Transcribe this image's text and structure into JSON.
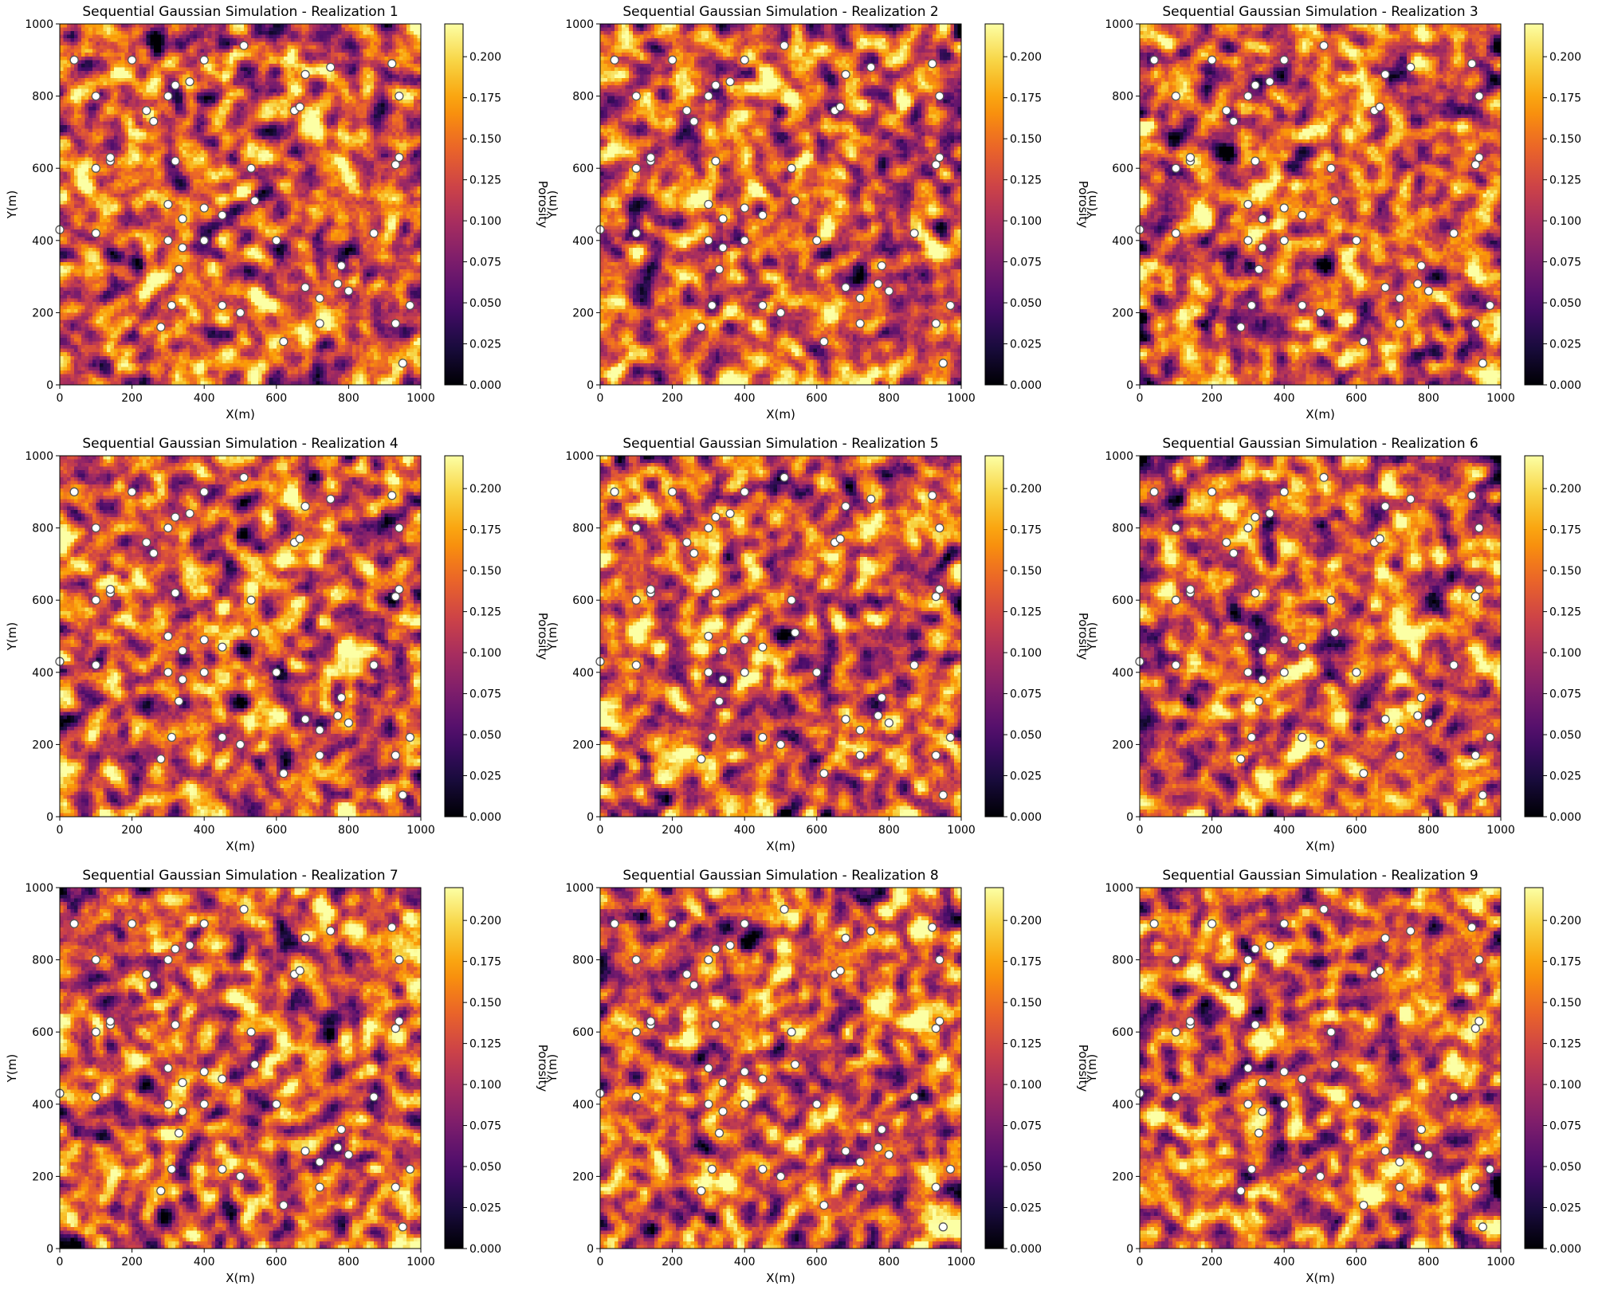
{
  "figure": {
    "colormap": "inferno",
    "colormap_stops": [
      "#000004",
      "#1b0c41",
      "#4a0c6b",
      "#781c6d",
      "#a52c60",
      "#cf4446",
      "#ed6925",
      "#fb9b06",
      "#f7d13d",
      "#fcffa4"
    ],
    "well_marker_color": "#ffffff",
    "well_marker_edge": "#555555"
  },
  "chart_data": [
    {
      "type": "heatmap",
      "title": "Sequential Gaussian Simulation - Realization 1",
      "xlabel": "X(m)",
      "ylabel": "Y(m)",
      "xlim": [
        0,
        1000
      ],
      "ylim": [
        0,
        1000
      ],
      "xticks": [
        0,
        200,
        400,
        600,
        800,
        1000
      ],
      "yticks": [
        0,
        200,
        400,
        600,
        800,
        1000
      ],
      "colorbar_label": "Porosity",
      "color_range": [
        0.0,
        0.22
      ],
      "colorbar_ticks": [
        "0.000",
        "0.025",
        "0.050",
        "0.075",
        "0.100",
        "0.125",
        "0.150",
        "0.175",
        "0.200"
      ],
      "grid_cells": [
        100,
        100
      ],
      "seed": 11
    },
    {
      "type": "heatmap",
      "title": "Sequential Gaussian Simulation - Realization 2",
      "xlabel": "X(m)",
      "ylabel": "Y(m)",
      "xlim": [
        0,
        1000
      ],
      "ylim": [
        0,
        1000
      ],
      "xticks": [
        0,
        200,
        400,
        600,
        800,
        1000
      ],
      "yticks": [
        0,
        200,
        400,
        600,
        800,
        1000
      ],
      "colorbar_label": "Porosity",
      "color_range": [
        0.0,
        0.22
      ],
      "colorbar_ticks": [
        "0.000",
        "0.025",
        "0.050",
        "0.075",
        "0.100",
        "0.125",
        "0.150",
        "0.175",
        "0.200"
      ],
      "grid_cells": [
        100,
        100
      ],
      "seed": 22
    },
    {
      "type": "heatmap",
      "title": "Sequential Gaussian Simulation - Realization 3",
      "xlabel": "X(m)",
      "ylabel": "Y(m)",
      "xlim": [
        0,
        1000
      ],
      "ylim": [
        0,
        1000
      ],
      "xticks": [
        0,
        200,
        400,
        600,
        800,
        1000
      ],
      "yticks": [
        0,
        200,
        400,
        600,
        800,
        1000
      ],
      "colorbar_label": "Porosity",
      "color_range": [
        0.0,
        0.22
      ],
      "colorbar_ticks": [
        "0.000",
        "0.025",
        "0.050",
        "0.075",
        "0.100",
        "0.125",
        "0.150",
        "0.175",
        "0.200"
      ],
      "grid_cells": [
        100,
        100
      ],
      "seed": 33
    },
    {
      "type": "heatmap",
      "title": "Sequential Gaussian Simulation - Realization 4",
      "xlabel": "X(m)",
      "ylabel": "Y(m)",
      "xlim": [
        0,
        1000
      ],
      "ylim": [
        0,
        1000
      ],
      "xticks": [
        0,
        200,
        400,
        600,
        800,
        1000
      ],
      "yticks": [
        0,
        200,
        400,
        600,
        800,
        1000
      ],
      "colorbar_label": "Porosity",
      "color_range": [
        0.0,
        0.22
      ],
      "colorbar_ticks": [
        "0.000",
        "0.025",
        "0.050",
        "0.075",
        "0.100",
        "0.125",
        "0.150",
        "0.175",
        "0.200"
      ],
      "grid_cells": [
        100,
        100
      ],
      "seed": 44
    },
    {
      "type": "heatmap",
      "title": "Sequential Gaussian Simulation - Realization 5",
      "xlabel": "X(m)",
      "ylabel": "Y(m)",
      "xlim": [
        0,
        1000
      ],
      "ylim": [
        0,
        1000
      ],
      "xticks": [
        0,
        200,
        400,
        600,
        800,
        1000
      ],
      "yticks": [
        0,
        200,
        400,
        600,
        800,
        1000
      ],
      "colorbar_label": "Porosity",
      "color_range": [
        0.0,
        0.22
      ],
      "colorbar_ticks": [
        "0.000",
        "0.025",
        "0.050",
        "0.075",
        "0.100",
        "0.125",
        "0.150",
        "0.175",
        "0.200"
      ],
      "grid_cells": [
        100,
        100
      ],
      "seed": 55
    },
    {
      "type": "heatmap",
      "title": "Sequential Gaussian Simulation - Realization 6",
      "xlabel": "X(m)",
      "ylabel": "Y(m)",
      "xlim": [
        0,
        1000
      ],
      "ylim": [
        0,
        1000
      ],
      "xticks": [
        0,
        200,
        400,
        600,
        800,
        1000
      ],
      "yticks": [
        0,
        200,
        400,
        600,
        800,
        1000
      ],
      "colorbar_label": "Porosity",
      "color_range": [
        0.0,
        0.22
      ],
      "colorbar_ticks": [
        "0.000",
        "0.025",
        "0.050",
        "0.075",
        "0.100",
        "0.125",
        "0.150",
        "0.175",
        "0.200"
      ],
      "grid_cells": [
        100,
        100
      ],
      "seed": 66
    },
    {
      "type": "heatmap",
      "title": "Sequential Gaussian Simulation - Realization 7",
      "xlabel": "X(m)",
      "ylabel": "Y(m)",
      "xlim": [
        0,
        1000
      ],
      "ylim": [
        0,
        1000
      ],
      "xticks": [
        0,
        200,
        400,
        600,
        800,
        1000
      ],
      "yticks": [
        0,
        200,
        400,
        600,
        800,
        1000
      ],
      "colorbar_label": "Porosity",
      "color_range": [
        0.0,
        0.22
      ],
      "colorbar_ticks": [
        "0.000",
        "0.025",
        "0.050",
        "0.075",
        "0.100",
        "0.125",
        "0.150",
        "0.175",
        "0.200"
      ],
      "grid_cells": [
        100,
        100
      ],
      "seed": 77
    },
    {
      "type": "heatmap",
      "title": "Sequential Gaussian Simulation - Realization 8",
      "xlabel": "X(m)",
      "ylabel": "Y(m)",
      "xlim": [
        0,
        1000
      ],
      "ylim": [
        0,
        1000
      ],
      "xticks": [
        0,
        200,
        400,
        600,
        800,
        1000
      ],
      "yticks": [
        0,
        200,
        400,
        600,
        800,
        1000
      ],
      "colorbar_label": "Porosity",
      "color_range": [
        0.0,
        0.22
      ],
      "colorbar_ticks": [
        "0.000",
        "0.025",
        "0.050",
        "0.075",
        "0.100",
        "0.125",
        "0.150",
        "0.175",
        "0.200"
      ],
      "grid_cells": [
        100,
        100
      ],
      "seed": 88
    },
    {
      "type": "heatmap",
      "title": "Sequential Gaussian Simulation - Realization 9",
      "xlabel": "X(m)",
      "ylabel": "Y(m)",
      "xlim": [
        0,
        1000
      ],
      "ylim": [
        0,
        1000
      ],
      "xticks": [
        0,
        200,
        400,
        600,
        800,
        1000
      ],
      "yticks": [
        0,
        200,
        400,
        600,
        800,
        1000
      ],
      "colorbar_label": "Porosity",
      "color_range": [
        0.0,
        0.22
      ],
      "colorbar_ticks": [
        "0.000",
        "0.025",
        "0.050",
        "0.075",
        "0.100",
        "0.125",
        "0.150",
        "0.175",
        "0.200"
      ],
      "grid_cells": [
        100,
        100
      ],
      "seed": 99
    }
  ],
  "wells": [
    [
      40,
      900
    ],
    [
      200,
      900
    ],
    [
      400,
      900
    ],
    [
      510,
      940
    ],
    [
      680,
      860
    ],
    [
      750,
      880
    ],
    [
      920,
      890
    ],
    [
      100,
      800
    ],
    [
      240,
      760
    ],
    [
      260,
      730
    ],
    [
      300,
      800
    ],
    [
      320,
      830
    ],
    [
      360,
      840
    ],
    [
      650,
      760
    ],
    [
      665,
      770
    ],
    [
      940,
      800
    ],
    [
      100,
      600
    ],
    [
      140,
      620
    ],
    [
      140,
      630
    ],
    [
      320,
      620
    ],
    [
      530,
      600
    ],
    [
      930,
      610
    ],
    [
      940,
      630
    ],
    [
      300,
      500
    ],
    [
      340,
      460
    ],
    [
      400,
      490
    ],
    [
      450,
      470
    ],
    [
      540,
      510
    ],
    [
      0,
      430
    ],
    [
      100,
      420
    ],
    [
      300,
      400
    ],
    [
      340,
      380
    ],
    [
      400,
      400
    ],
    [
      600,
      400
    ],
    [
      870,
      420
    ],
    [
      330,
      320
    ],
    [
      780,
      330
    ],
    [
      680,
      270
    ],
    [
      720,
      240
    ],
    [
      770,
      280
    ],
    [
      800,
      260
    ],
    [
      970,
      220
    ],
    [
      280,
      160
    ],
    [
      310,
      220
    ],
    [
      450,
      220
    ],
    [
      500,
      200
    ],
    [
      620,
      120
    ],
    [
      720,
      170
    ],
    [
      930,
      170
    ],
    [
      950,
      60
    ]
  ]
}
